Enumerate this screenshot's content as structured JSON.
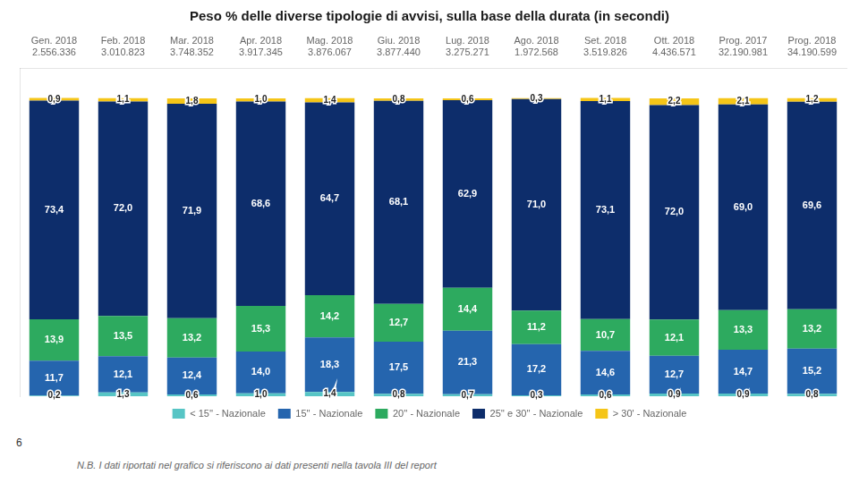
{
  "chart_data": {
    "type": "bar",
    "title": "Peso % delle diverse tipologie di avvisi, sulla base della durata (in secondi)",
    "categories": [
      "Gen. 2018",
      "Feb. 2018",
      "Mar. 2018",
      "Apr. 2018",
      "Mag. 2018",
      "Giu. 2018",
      "Lug. 2018",
      "Ago. 2018",
      "Set. 2018",
      "Ott. 2018",
      "Prog. 2017",
      "Prog. 2018"
    ],
    "category_subtitles": [
      "2.556.336",
      "3.010.823",
      "3.748.352",
      "3.917.345",
      "3.876.067",
      "3.877.440",
      "3.275.271",
      "1.972.568",
      "3.519.826",
      "4.436.571",
      "32.190.981",
      "34.190.599"
    ],
    "series": [
      {
        "name": "< 15'' - Nazionale",
        "color": "#57c5c5",
        "values": [
          0.2,
          1.3,
          0.6,
          1.0,
          1.4,
          0.8,
          0.7,
          0.3,
          0.6,
          0.9,
          0.9,
          0.8
        ],
        "value_labels": [
          "0,2",
          "1,3",
          "0,6",
          "1,0",
          "1,4",
          "0,8",
          "0,7",
          "0,3",
          "0,6",
          "0,9",
          "0,9",
          "0,8"
        ]
      },
      {
        "name": "15'' - Nazionale",
        "color": "#2565ae",
        "values": [
          11.7,
          12.1,
          12.4,
          14.0,
          18.3,
          17.5,
          21.3,
          17.2,
          14.6,
          12.7,
          14.7,
          15.2
        ],
        "value_labels": [
          "11,7",
          "12,1",
          "12,4",
          "14,0",
          "18,3",
          "17,5",
          "21,3",
          "17,2",
          "14,6",
          "12,7",
          "14,7",
          "15,2"
        ]
      },
      {
        "name": "20'' - Nazionale",
        "color": "#2daa5f",
        "values": [
          13.9,
          13.5,
          13.2,
          15.3,
          14.2,
          12.7,
          14.4,
          11.2,
          10.7,
          12.1,
          13.3,
          13.2
        ],
        "value_labels": [
          "13,9",
          "13,5",
          "13,2",
          "15,3",
          "14,2",
          "12,7",
          "14,4",
          "11,2",
          "10,7",
          "12,1",
          "13,3",
          "13,2"
        ]
      },
      {
        "name": "25'' e 30'' - Nazionale",
        "color": "#0d2d6b",
        "values": [
          73.4,
          72.0,
          71.9,
          68.6,
          64.7,
          68.1,
          62.9,
          71.0,
          73.1,
          72.0,
          69.0,
          69.6
        ],
        "value_labels": [
          "73,4",
          "72,0",
          "71,9",
          "68,6",
          "64,7",
          "68,1",
          "62,9",
          "71,0",
          "73,1",
          "72,0",
          "69,0",
          "69,6"
        ]
      },
      {
        "name": "> 30' - Nazionale",
        "color": "#f5c518",
        "values": [
          0.9,
          1.1,
          1.8,
          1.0,
          1.4,
          0.8,
          0.6,
          0.3,
          1.1,
          2.2,
          2.1,
          1.2
        ],
        "value_labels": [
          "0,9",
          "1,1",
          "1,8",
          "1,0",
          "1,4",
          "0,8",
          "0,6",
          "0,3",
          "1,1",
          "2,2",
          "2,1",
          "1,2"
        ]
      }
    ],
    "stacked": true,
    "data_labels": true,
    "ylim": [
      0,
      110
    ],
    "tick_labels": "x",
    "grid": false,
    "legend": "bottom",
    "page_number": "6",
    "footnote": "N.B. I dati riportati nel grafico si riferiscono ai dati presenti nella tavola III del report"
  }
}
